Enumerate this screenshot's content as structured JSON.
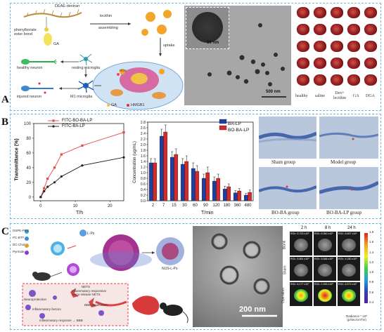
{
  "panels": {
    "a": {
      "label": "A"
    },
    "b": {
      "label": "B"
    },
    "c": {
      "label": "C"
    }
  },
  "panel_a": {
    "schematic": {
      "deae": "DEAE-dextran",
      "lecithin": "lecithin",
      "assembling": "assembling",
      "ester": "phenylborate\nester bond",
      "ga_label": "GA",
      "uptake": "uptake",
      "healthy_neuron": "healthy neuron",
      "resting_microglia": "resting microglia",
      "m1": "M1 microglia",
      "injured_neuron": "injured neuron",
      "ros": "ROS",
      "legend_ga": "GA",
      "legend_hmgb1": "HMGB1"
    },
    "tem_inset_scale": "50 nm",
    "tem_scale": "500 nm",
    "brain_groups": [
      "healthy",
      "saline",
      "Dex+\nlecithin",
      "GA",
      "DGA"
    ]
  },
  "chart_data": [
    {
      "type": "line",
      "ylabel": "Transmittance (%)",
      "xlabel": "T/h",
      "xlim": [
        -2,
        24
      ],
      "ylim": [
        -5,
        100
      ],
      "xticks": [
        0,
        10,
        20
      ],
      "yticks": [
        0,
        20,
        40,
        60,
        80,
        100
      ],
      "legend_position": "top",
      "series": [
        {
          "name": "FITC-BO-BA-LP",
          "color": "#e34a4a",
          "x": [
            0,
            1,
            2,
            4,
            6,
            12,
            24
          ],
          "y": [
            0,
            12,
            25,
            40,
            58,
            70,
            88
          ]
        },
        {
          "name": "FITC-BA-LP",
          "color": "#222222",
          "x": [
            0,
            1,
            2,
            4,
            6,
            12,
            24
          ],
          "y": [
            0,
            8,
            14,
            20,
            28,
            43,
            54
          ]
        }
      ]
    },
    {
      "type": "bar",
      "ylabel": "Concentration (ug/mL)",
      "xlabel": "T/min",
      "ylim": [
        0,
        2.8
      ],
      "yticks": [
        0.0,
        0.2,
        0.4,
        0.6,
        0.8,
        1.0,
        1.2,
        1.4,
        1.6,
        1.8,
        2.0,
        2.2,
        2.4,
        2.6,
        2.8
      ],
      "categories": [
        "2",
        "7",
        "15",
        "30",
        "60",
        "90",
        "120",
        "180",
        "360",
        "480"
      ],
      "legend_position": "top-right",
      "series": [
        {
          "name": "BA-LP",
          "color": "#1f3f9e",
          "values": [
            1.35,
            2.3,
            1.55,
            1.3,
            1.15,
            0.8,
            0.7,
            0.42,
            0.28,
            0.2
          ],
          "errors": [
            0.15,
            0.25,
            0.2,
            0.2,
            0.2,
            0.15,
            0.15,
            0.1,
            0.08,
            0.06
          ]
        },
        {
          "name": "BO-BA-LP",
          "color": "#d42a2a",
          "values": [
            1.35,
            2.45,
            1.65,
            1.4,
            1.05,
            1.0,
            0.8,
            0.5,
            0.35,
            0.3
          ],
          "errors": [
            0.15,
            0.25,
            0.2,
            0.2,
            0.2,
            0.2,
            0.15,
            0.1,
            0.08,
            0.08
          ]
        }
      ]
    }
  ],
  "panel_b": {
    "histology": [
      "Sham group",
      "Model group",
      "BO-BA group",
      "BO-BA-LP group"
    ]
  },
  "panel_c": {
    "schematic": {
      "dspe": "DSPE-PEG",
      "pcbtt": "PC-BTT",
      "dcchol": "DC-Chol",
      "purple": "Pyrmide",
      "lps": "L-Ps",
      "nus": "NUS-L-Ps",
      "nets": "NETS",
      "neuro": "Neuroprotection",
      "inflam_factors": "Inflammatory factors",
      "inflam_responsive": "Inflammatory responsive\ncargo release NETS",
      "bbb": "BBB penetration",
      "inflam_bbb": "Inflammatory response → BBB"
    },
    "tem_scale": "200 nm",
    "imaging": {
      "cols": [
        "2 h",
        "8 h",
        "24 h"
      ],
      "rows": [
        "Blank",
        "Sham",
        "Operation"
      ],
      "roi": [
        [
          "ROI= 5.723 x10⁵",
          "ROI= 6.360 x10⁵",
          "ROI= 5.697 x10⁵"
        ],
        [
          "ROI= 5.851 x10⁵",
          "ROI= 5.586 x10⁵",
          "ROI= 4.250 x10⁵"
        ],
        [
          "ROI= 6.177 x10⁷",
          "ROI= 1.993 x10⁸",
          "ROI= 6.573 x10⁷"
        ]
      ],
      "colorbar_ticks": [
        "1.8",
        "1.6",
        "1.4",
        "1.2",
        "1.0",
        "0.8",
        "0.6",
        "0.4"
      ],
      "colorbar_label": "Radiance * 10⁸\n(p/sec/cm²/sr)"
    }
  }
}
